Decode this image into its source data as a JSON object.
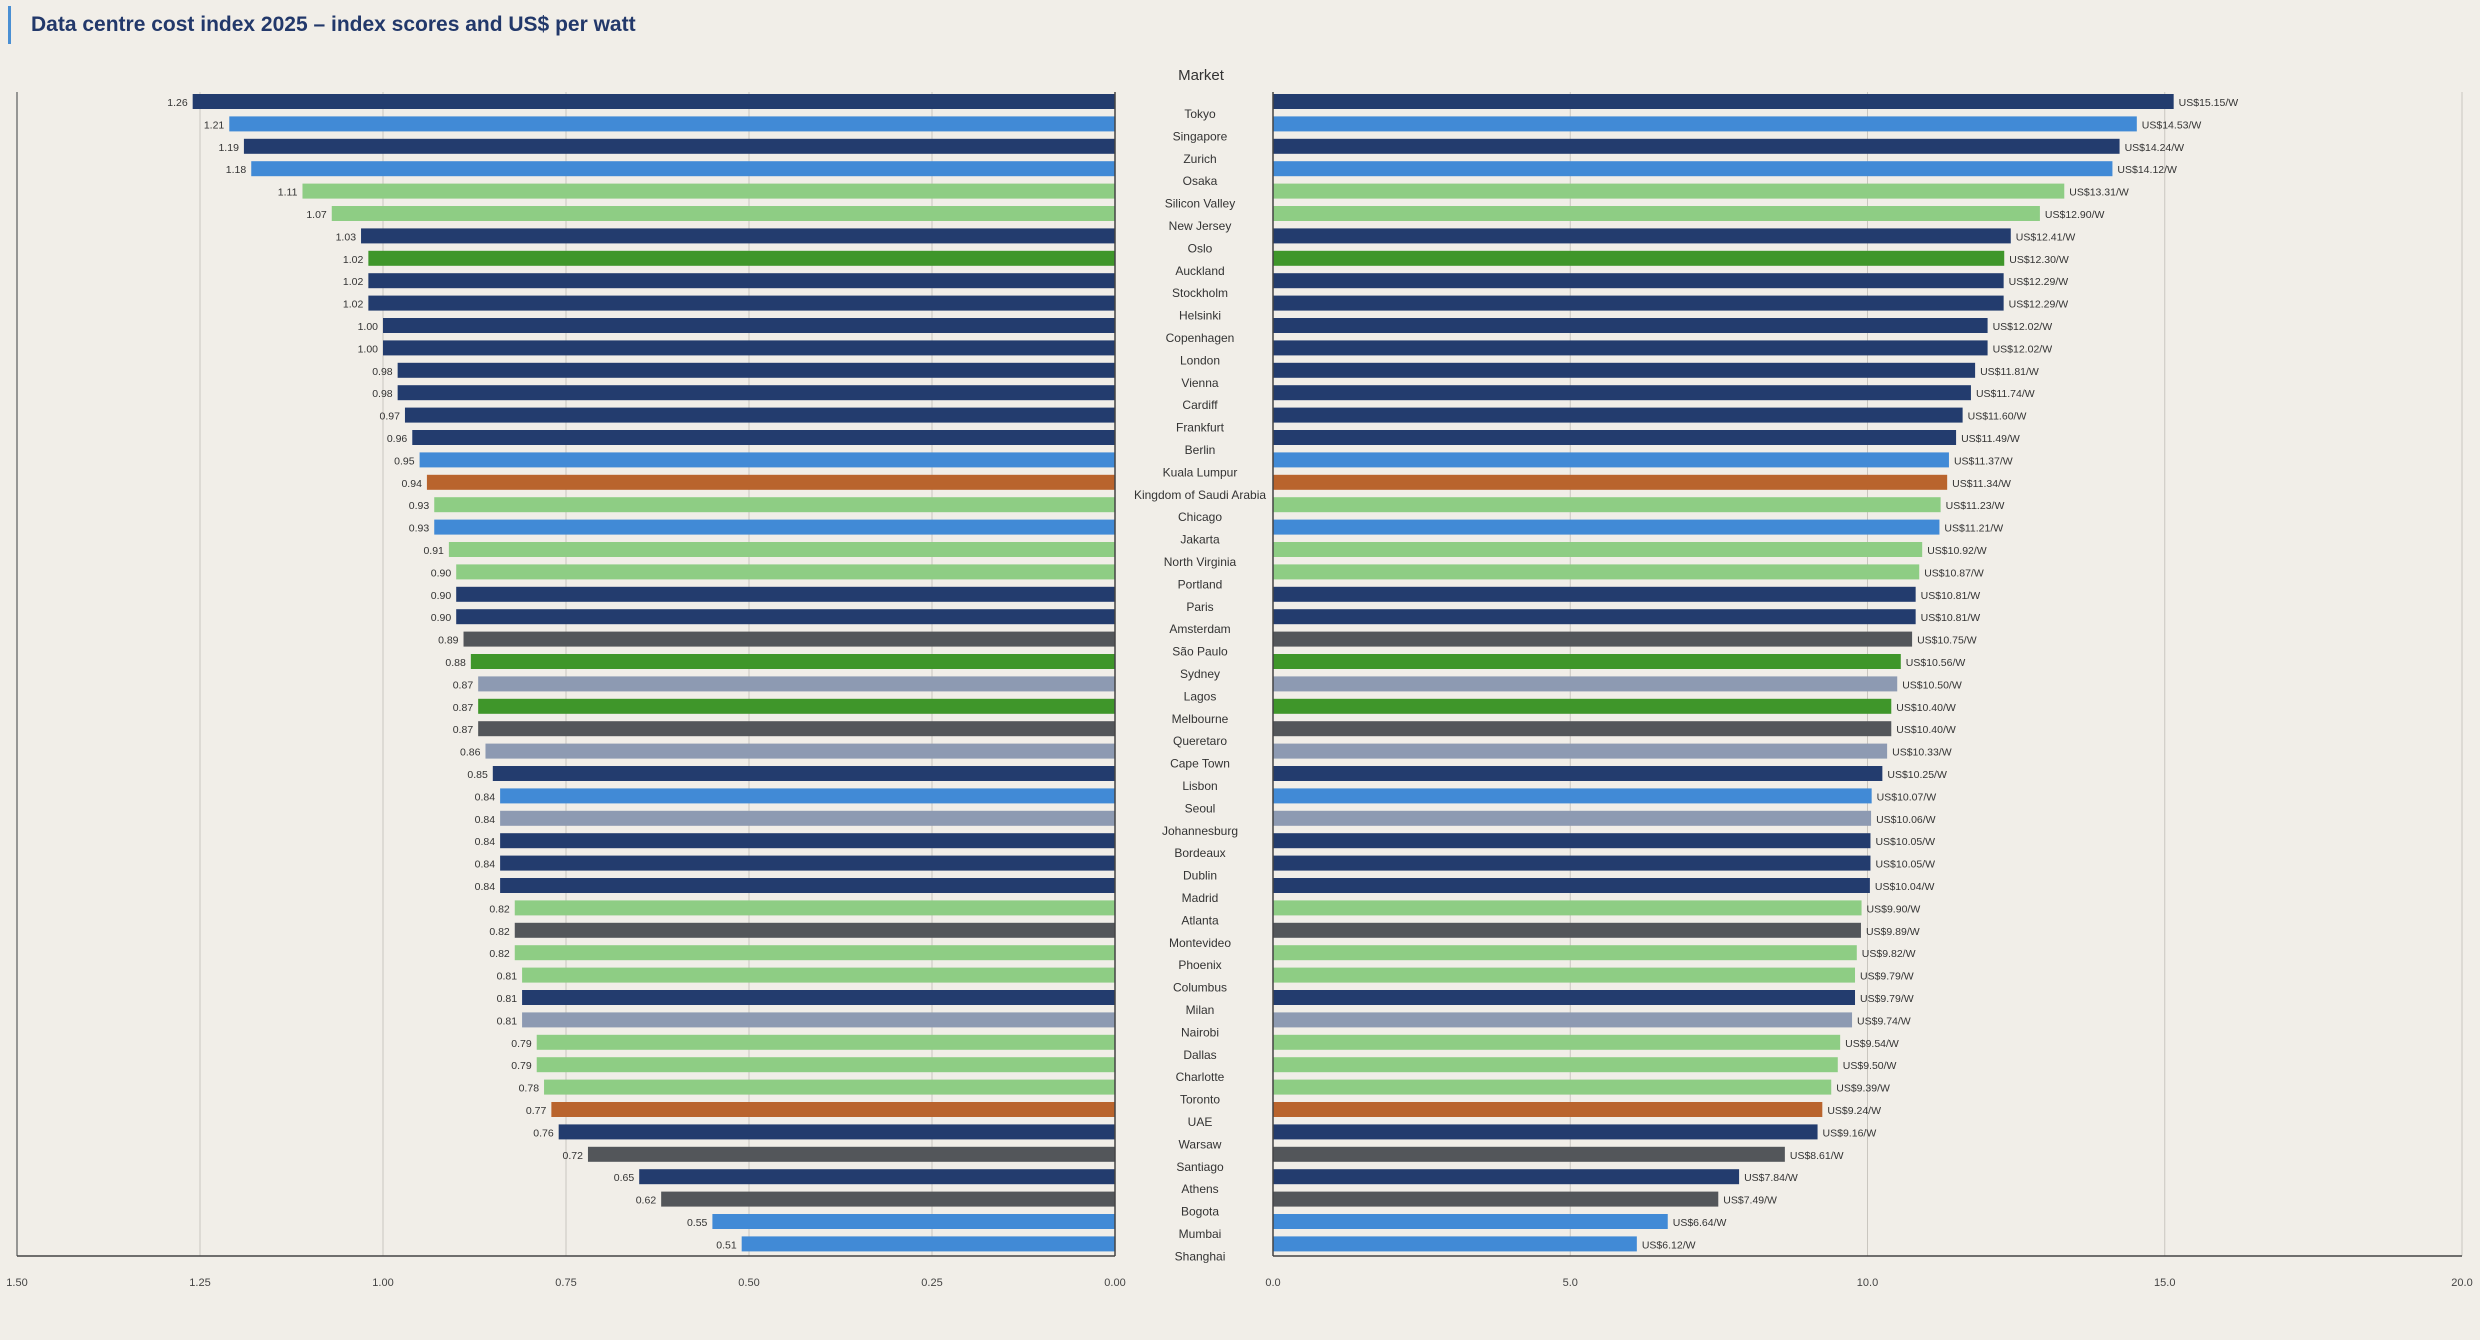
{
  "title": "Data centre cost index 2025 – index scores and US$ per watt",
  "chart_data": {
    "type": "bar",
    "orientation": "horizontal",
    "layout": "butterfly",
    "title": "Data centre cost index 2025 – index scores and US$ per watt",
    "category_axis_label": "Market",
    "categories": [
      "Tokyo",
      "Singapore",
      "Zurich",
      "Osaka",
      "Silicon Valley",
      "New Jersey",
      "Oslo",
      "Auckland",
      "Stockholm",
      "Helsinki",
      "Copenhagen",
      "London",
      "Vienna",
      "Cardiff",
      "Frankfurt",
      "Berlin",
      "Kuala Lumpur",
      "Kingdom of Saudi Arabia",
      "Chicago",
      "Jakarta",
      "North Virginia",
      "Portland",
      "Paris",
      "Amsterdam",
      "São Paulo",
      "Sydney",
      "Lagos",
      "Melbourne",
      "Queretaro",
      "Cape Town",
      "Lisbon",
      "Seoul",
      "Johannesburg",
      "Bordeaux",
      "Dublin",
      "Madrid",
      "Atlanta",
      "Montevideo",
      "Phoenix",
      "Columbus",
      "Milan",
      "Nairobi",
      "Dallas",
      "Charlotte",
      "Toronto",
      "UAE",
      "Warsaw",
      "Santiago",
      "Athens",
      "Bogota",
      "Mumbai",
      "Shanghai"
    ],
    "region_colors": [
      "#233c6e",
      "#418ad6",
      "#8ecd84",
      "#3f962a",
      "#b9642d",
      "#53565a",
      "#8d9ab2"
    ],
    "bar_color_index": [
      0,
      1,
      0,
      1,
      2,
      2,
      0,
      3,
      0,
      0,
      0,
      0,
      0,
      0,
      0,
      0,
      1,
      4,
      2,
      1,
      2,
      2,
      0,
      0,
      5,
      3,
      6,
      3,
      5,
      6,
      0,
      1,
      6,
      0,
      0,
      0,
      2,
      5,
      2,
      2,
      0,
      6,
      2,
      2,
      2,
      4,
      0,
      5,
      0,
      5,
      1,
      1
    ],
    "series": [
      {
        "name": "Index score",
        "axis": "left",
        "reversed": true,
        "xlim": [
          0,
          1.5
        ],
        "ticks": [
          1.5,
          1.25,
          1.0,
          0.75,
          0.5,
          0.25,
          0.0
        ],
        "tick_labels": [
          "1.50",
          "1.25",
          "1.00",
          "0.75",
          "0.50",
          "0.25",
          "0.00"
        ],
        "values": [
          1.26,
          1.21,
          1.19,
          1.18,
          1.11,
          1.07,
          1.03,
          1.02,
          1.02,
          1.02,
          1.0,
          1.0,
          0.98,
          0.98,
          0.97,
          0.96,
          0.95,
          0.94,
          0.93,
          0.93,
          0.91,
          0.9,
          0.9,
          0.9,
          0.89,
          0.88,
          0.87,
          0.87,
          0.87,
          0.86,
          0.85,
          0.84,
          0.84,
          0.84,
          0.84,
          0.84,
          0.82,
          0.82,
          0.82,
          0.81,
          0.81,
          0.81,
          0.79,
          0.79,
          0.78,
          0.77,
          0.76,
          0.72,
          0.65,
          0.62,
          0.55,
          0.51
        ],
        "labels": [
          "1.26",
          "1.21",
          "1.19",
          "1.18",
          "1.11",
          "1.07",
          "1.03",
          "1.02",
          "1.02",
          "1.02",
          "1.00",
          "1.00",
          "0.98",
          "0.98",
          "0.97",
          "0.96",
          "0.95",
          "0.94",
          "0.93",
          "0.93",
          "0.91",
          "0.90",
          "0.90",
          "0.90",
          "0.89",
          "0.88",
          "0.87",
          "0.87",
          "0.87",
          "0.86",
          "0.85",
          "0.84",
          "0.84",
          "0.84",
          "0.84",
          "0.84",
          "0.82",
          "0.82",
          "0.82",
          "0.81",
          "0.81",
          "0.81",
          "0.79",
          "0.79",
          "0.78",
          "0.77",
          "0.76",
          "0.72",
          "0.65",
          "0.62",
          "0.55",
          "0.51"
        ]
      },
      {
        "name": "US$ per watt",
        "axis": "right",
        "reversed": false,
        "xlim": [
          0,
          20
        ],
        "ticks": [
          0,
          5,
          10,
          15,
          20
        ],
        "tick_labels": [
          "0.0",
          "5.0",
          "10.0",
          "15.0",
          "20.0"
        ],
        "values": [
          15.15,
          14.53,
          14.24,
          14.12,
          13.31,
          12.9,
          12.41,
          12.3,
          12.29,
          12.29,
          12.02,
          12.02,
          11.81,
          11.74,
          11.6,
          11.49,
          11.37,
          11.34,
          11.23,
          11.21,
          10.92,
          10.87,
          10.81,
          10.81,
          10.75,
          10.56,
          10.5,
          10.4,
          10.4,
          10.33,
          10.25,
          10.07,
          10.06,
          10.05,
          10.05,
          10.04,
          9.9,
          9.89,
          9.82,
          9.79,
          9.79,
          9.74,
          9.54,
          9.5,
          9.39,
          9.24,
          9.16,
          8.61,
          7.84,
          7.49,
          6.64,
          6.12
        ],
        "labels": [
          "US$15.15/W",
          "US$14.53/W",
          "US$14.24/W",
          "US$14.12/W",
          "US$13.31/W",
          "US$12.90/W",
          "US$12.41/W",
          "US$12.30/W",
          "US$12.29/W",
          "US$12.29/W",
          "US$12.02/W",
          "US$12.02/W",
          "US$11.81/W",
          "US$11.74/W",
          "US$11.60/W",
          "US$11.49/W",
          "US$11.37/W",
          "US$11.34/W",
          "US$11.23/W",
          "US$11.21/W",
          "US$10.92/W",
          "US$10.87/W",
          "US$10.81/W",
          "US$10.81/W",
          "US$10.75/W",
          "US$10.56/W",
          "US$10.50/W",
          "US$10.40/W",
          "US$10.40/W",
          "US$10.33/W",
          "US$10.25/W",
          "US$10.07/W",
          "US$10.06/W",
          "US$10.05/W",
          "US$10.05/W",
          "US$10.04/W",
          "US$9.90/W",
          "US$9.89/W",
          "US$9.82/W",
          "US$9.79/W",
          "US$9.79/W",
          "US$9.74/W",
          "US$9.54/W",
          "US$9.50/W",
          "US$9.39/W",
          "US$9.24/W",
          "US$9.16/W",
          "US$8.61/W",
          "US$7.84/W",
          "US$7.49/W",
          "US$6.64/W",
          "US$6.12/W"
        ]
      }
    ]
  }
}
